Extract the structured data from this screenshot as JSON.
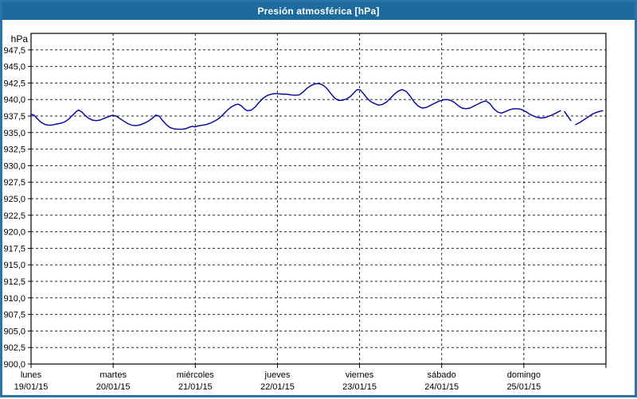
{
  "window": {
    "title": "Presión atmosférica [hPa]"
  },
  "colors": {
    "title_bar": "#1d6a9f",
    "title_text": "#ffffff",
    "window_border": "#2a74a8",
    "plot_background": "#ffffff",
    "axis": "#000000",
    "grid": "#2a2a2a",
    "line": "#0000a0",
    "label_text": "#000000"
  },
  "chart_data": {
    "type": "line",
    "title": "Presión atmosférica [hPa]",
    "ylabel": "hPa",
    "unit_label": "hPa",
    "ylim": [
      900,
      950
    ],
    "ytick_step": 2.5,
    "ytick_labels": [
      "900,0",
      "902,5",
      "905,0",
      "907,5",
      "910,0",
      "912,5",
      "915,0",
      "917,5",
      "920,0",
      "922,5",
      "925,0",
      "927,5",
      "930,0",
      "932,5",
      "935,0",
      "937,5",
      "940,0",
      "942,5",
      "945,0",
      "947,5"
    ],
    "ytick_values": [
      900,
      902.5,
      905,
      907.5,
      910,
      912.5,
      915,
      917.5,
      920,
      922.5,
      925,
      927.5,
      930,
      932.5,
      935,
      937.5,
      940,
      942.5,
      945,
      947.5
    ],
    "grid": true,
    "legend": false,
    "x_days": [
      {
        "name": "lunes",
        "date": "19/01/15"
      },
      {
        "name": "martes",
        "date": "20/01/15"
      },
      {
        "name": "miércoles",
        "date": "21/01/15"
      },
      {
        "name": "jueves",
        "date": "22/01/15"
      },
      {
        "name": "viernes",
        "date": "23/01/15"
      },
      {
        "name": "sábado",
        "date": "24/01/15"
      },
      {
        "name": "domingo",
        "date": "25/01/15"
      }
    ],
    "x_unit": "days_from_monday_start",
    "series": [
      {
        "name": "Presión atmosférica",
        "unit": "hPa",
        "segments": [
          [
            [
              0.0,
              937.8
            ],
            [
              0.039,
              937.6
            ],
            [
              0.068,
              937.2
            ],
            [
              0.116,
              936.6
            ],
            [
              0.165,
              936.25
            ],
            [
              0.213,
              936.1
            ],
            [
              0.261,
              936.15
            ],
            [
              0.31,
              936.3
            ],
            [
              0.358,
              936.4
            ],
            [
              0.407,
              936.6
            ],
            [
              0.455,
              937.0
            ],
            [
              0.503,
              937.6
            ],
            [
              0.552,
              938.2
            ],
            [
              0.581,
              938.4
            ],
            [
              0.62,
              938.1
            ],
            [
              0.658,
              937.6
            ],
            [
              0.697,
              937.2
            ],
            [
              0.745,
              936.9
            ],
            [
              0.794,
              936.8
            ],
            [
              0.842,
              936.9
            ],
            [
              0.891,
              937.15
            ],
            [
              0.939,
              937.4
            ],
            [
              0.987,
              937.6
            ],
            [
              1.036,
              937.5
            ],
            [
              1.084,
              937.1
            ],
            [
              1.133,
              936.7
            ],
            [
              1.181,
              936.35
            ],
            [
              1.23,
              936.1
            ],
            [
              1.278,
              936.05
            ],
            [
              1.326,
              936.15
            ],
            [
              1.375,
              936.4
            ],
            [
              1.423,
              936.7
            ],
            [
              1.471,
              937.1
            ],
            [
              1.52,
              937.65
            ],
            [
              1.559,
              937.5
            ],
            [
              1.597,
              936.9
            ],
            [
              1.646,
              936.2
            ],
            [
              1.694,
              935.75
            ],
            [
              1.742,
              935.55
            ],
            [
              1.791,
              935.5
            ],
            [
              1.839,
              935.5
            ],
            [
              1.888,
              935.6
            ],
            [
              1.936,
              935.85
            ],
            [
              1.965,
              935.95
            ],
            [
              1.994,
              935.85
            ],
            [
              2.033,
              936.0
            ],
            [
              2.081,
              936.1
            ],
            [
              2.13,
              936.2
            ],
            [
              2.188,
              936.45
            ],
            [
              2.246,
              936.8
            ],
            [
              2.294,
              937.2
            ],
            [
              2.343,
              937.8
            ],
            [
              2.391,
              938.4
            ],
            [
              2.44,
              938.9
            ],
            [
              2.488,
              939.2
            ],
            [
              2.517,
              939.3
            ],
            [
              2.556,
              939.1
            ],
            [
              2.595,
              938.6
            ],
            [
              2.633,
              938.3
            ],
            [
              2.682,
              938.4
            ],
            [
              2.73,
              938.9
            ],
            [
              2.779,
              939.6
            ],
            [
              2.827,
              940.2
            ],
            [
              2.875,
              940.6
            ],
            [
              2.924,
              940.8
            ],
            [
              2.972,
              940.9
            ],
            [
              3.021,
              940.85
            ],
            [
              3.069,
              940.8
            ],
            [
              3.117,
              940.8
            ],
            [
              3.166,
              940.7
            ],
            [
              3.214,
              940.65
            ],
            [
              3.263,
              940.7
            ],
            [
              3.311,
              941.1
            ],
            [
              3.359,
              941.7
            ],
            [
              3.408,
              942.1
            ],
            [
              3.456,
              942.35
            ],
            [
              3.505,
              942.4
            ],
            [
              3.553,
              942.2
            ],
            [
              3.601,
              941.7
            ],
            [
              3.65,
              940.9
            ],
            [
              3.698,
              940.2
            ],
            [
              3.747,
              939.85
            ],
            [
              3.795,
              939.9
            ],
            [
              3.843,
              940.1
            ],
            [
              3.892,
              940.5
            ],
            [
              3.93,
              941.0
            ],
            [
              3.969,
              941.5
            ],
            [
              4.008,
              941.45
            ],
            [
              4.047,
              940.9
            ],
            [
              4.085,
              940.3
            ],
            [
              4.134,
              939.7
            ],
            [
              4.182,
              939.4
            ],
            [
              4.23,
              939.15
            ],
            [
              4.279,
              939.25
            ],
            [
              4.327,
              939.6
            ],
            [
              4.376,
              940.2
            ],
            [
              4.424,
              940.8
            ],
            [
              4.472,
              941.3
            ],
            [
              4.521,
              941.5
            ],
            [
              4.569,
              941.2
            ],
            [
              4.617,
              940.5
            ],
            [
              4.666,
              939.6
            ],
            [
              4.714,
              939.0
            ],
            [
              4.763,
              938.7
            ],
            [
              4.811,
              938.8
            ],
            [
              4.859,
              939.1
            ],
            [
              4.908,
              939.4
            ],
            [
              4.956,
              939.7
            ],
            [
              5.005,
              939.9
            ],
            [
              5.053,
              940.0
            ],
            [
              5.101,
              939.9
            ],
            [
              5.15,
              939.6
            ],
            [
              5.198,
              939.1
            ],
            [
              5.247,
              938.7
            ],
            [
              5.295,
              938.6
            ],
            [
              5.343,
              938.7
            ],
            [
              5.392,
              939.0
            ],
            [
              5.44,
              939.3
            ],
            [
              5.488,
              939.6
            ],
            [
              5.537,
              939.8
            ],
            [
              5.585,
              939.4
            ],
            [
              5.634,
              938.6
            ],
            [
              5.682,
              938.1
            ],
            [
              5.73,
              937.95
            ],
            [
              5.779,
              938.2
            ],
            [
              5.827,
              938.45
            ],
            [
              5.875,
              938.6
            ],
            [
              5.924,
              938.6
            ],
            [
              5.972,
              938.5
            ],
            [
              6.021,
              938.2
            ],
            [
              6.069,
              937.8
            ],
            [
              6.118,
              937.5
            ],
            [
              6.166,
              937.3
            ],
            [
              6.214,
              937.2
            ],
            [
              6.263,
              937.3
            ],
            [
              6.311,
              937.5
            ],
            [
              6.359,
              937.75
            ],
            [
              6.408,
              938.05
            ],
            [
              6.447,
              938.3
            ]
          ],
          [
            [
              6.495,
              938.2
            ],
            [
              6.534,
              937.5
            ],
            [
              6.572,
              936.8
            ]
          ],
          [
            [
              6.631,
              936.2
            ],
            [
              6.679,
              936.5
            ],
            [
              6.727,
              936.9
            ],
            [
              6.776,
              937.3
            ],
            [
              6.824,
              937.7
            ],
            [
              6.872,
              938.0
            ],
            [
              6.921,
              938.2
            ],
            [
              6.959,
              938.3
            ]
          ]
        ]
      }
    ]
  }
}
